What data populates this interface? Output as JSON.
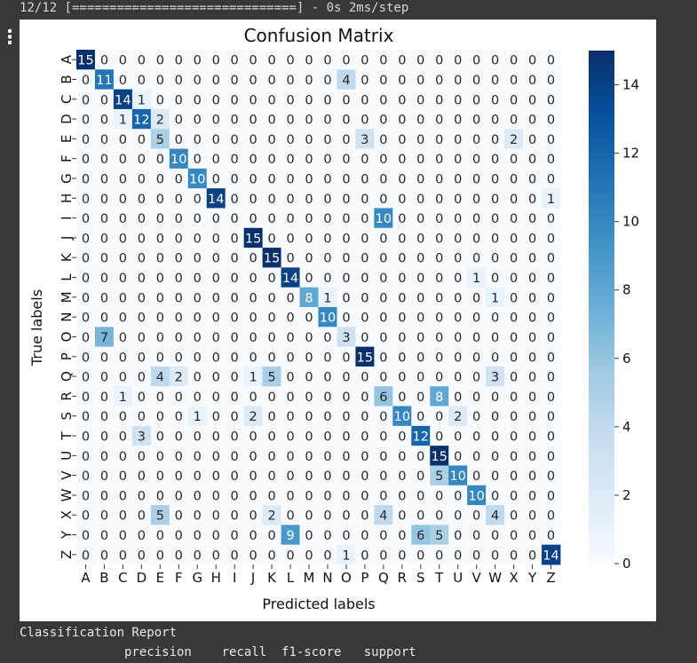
{
  "console": {
    "progress": "12/12 [==============================] - 0s 2ms/step",
    "report_title": "Classification Report",
    "report_header": "              precision    recall  f1-score   support"
  },
  "gutter_icon": "output-toggle-icon",
  "colors": {
    "cmap": "Blues",
    "low": "#f7fbff",
    "high": "#08306b"
  },
  "chart_data": {
    "type": "heatmap",
    "title": "Confusion Matrix",
    "xlabel": "Predicted labels",
    "ylabel": "True labels",
    "x_labels": [
      "A",
      "B",
      "C",
      "D",
      "E",
      "F",
      "G",
      "H",
      "I",
      "J",
      "K",
      "L",
      "M",
      "N",
      "O",
      "P",
      "Q",
      "R",
      "S",
      "T",
      "U",
      "V",
      "W",
      "X",
      "Y",
      "Z"
    ],
    "y_labels": [
      "A",
      "B",
      "C",
      "D",
      "E",
      "F",
      "G",
      "H",
      "I",
      "J",
      "K",
      "L",
      "M",
      "N",
      "O",
      "P",
      "Q",
      "R",
      "S",
      "T",
      "U",
      "V",
      "W",
      "X",
      "Y",
      "Z"
    ],
    "vmin": 0,
    "vmax": 15,
    "colorbar_ticks": [
      0,
      2,
      4,
      6,
      8,
      10,
      12,
      14
    ],
    "matrix": [
      [
        15,
        0,
        0,
        0,
        0,
        0,
        0,
        0,
        0,
        0,
        0,
        0,
        0,
        0,
        0,
        0,
        0,
        0,
        0,
        0,
        0,
        0,
        0,
        0,
        0,
        0
      ],
      [
        0,
        11,
        0,
        0,
        0,
        0,
        0,
        0,
        0,
        0,
        0,
        0,
        0,
        0,
        4,
        0,
        0,
        0,
        0,
        0,
        0,
        0,
        0,
        0,
        0,
        0
      ],
      [
        0,
        0,
        14,
        1,
        0,
        0,
        0,
        0,
        0,
        0,
        0,
        0,
        0,
        0,
        0,
        0,
        0,
        0,
        0,
        0,
        0,
        0,
        0,
        0,
        0,
        0
      ],
      [
        0,
        0,
        1,
        12,
        2,
        0,
        0,
        0,
        0,
        0,
        0,
        0,
        0,
        0,
        0,
        0,
        0,
        0,
        0,
        0,
        0,
        0,
        0,
        0,
        0,
        0
      ],
      [
        0,
        0,
        0,
        0,
        5,
        0,
        0,
        0,
        0,
        0,
        0,
        0,
        0,
        0,
        0,
        3,
        0,
        0,
        0,
        0,
        0,
        0,
        0,
        2,
        0,
        0
      ],
      [
        0,
        0,
        0,
        0,
        0,
        10,
        0,
        0,
        0,
        0,
        0,
        0,
        0,
        0,
        0,
        0,
        0,
        0,
        0,
        0,
        0,
        0,
        0,
        0,
        0,
        0
      ],
      [
        0,
        0,
        0,
        0,
        0,
        0,
        10,
        0,
        0,
        0,
        0,
        0,
        0,
        0,
        0,
        0,
        0,
        0,
        0,
        0,
        0,
        0,
        0,
        0,
        0,
        0
      ],
      [
        0,
        0,
        0,
        0,
        0,
        0,
        0,
        14,
        0,
        0,
        0,
        0,
        0,
        0,
        0,
        0,
        0,
        0,
        0,
        0,
        0,
        0,
        0,
        0,
        0,
        1
      ],
      [
        0,
        0,
        0,
        0,
        0,
        0,
        0,
        0,
        0,
        0,
        0,
        0,
        0,
        0,
        0,
        0,
        10,
        0,
        0,
        0,
        0,
        0,
        0,
        0,
        0,
        0
      ],
      [
        0,
        0,
        0,
        0,
        0,
        0,
        0,
        0,
        0,
        15,
        0,
        0,
        0,
        0,
        0,
        0,
        0,
        0,
        0,
        0,
        0,
        0,
        0,
        0,
        0,
        0
      ],
      [
        0,
        0,
        0,
        0,
        0,
        0,
        0,
        0,
        0,
        0,
        15,
        0,
        0,
        0,
        0,
        0,
        0,
        0,
        0,
        0,
        0,
        0,
        0,
        0,
        0,
        0
      ],
      [
        0,
        0,
        0,
        0,
        0,
        0,
        0,
        0,
        0,
        0,
        0,
        14,
        0,
        0,
        0,
        0,
        0,
        0,
        0,
        0,
        0,
        1,
        0,
        0,
        0,
        0
      ],
      [
        0,
        0,
        0,
        0,
        0,
        0,
        0,
        0,
        0,
        0,
        0,
        0,
        8,
        1,
        0,
        0,
        0,
        0,
        0,
        0,
        0,
        0,
        1,
        0,
        0,
        0
      ],
      [
        0,
        0,
        0,
        0,
        0,
        0,
        0,
        0,
        0,
        0,
        0,
        0,
        0,
        10,
        0,
        0,
        0,
        0,
        0,
        0,
        0,
        0,
        0,
        0,
        0,
        0
      ],
      [
        0,
        7,
        0,
        0,
        0,
        0,
        0,
        0,
        0,
        0,
        0,
        0,
        0,
        0,
        3,
        0,
        0,
        0,
        0,
        0,
        0,
        0,
        0,
        0,
        0,
        0
      ],
      [
        0,
        0,
        0,
        0,
        0,
        0,
        0,
        0,
        0,
        0,
        0,
        0,
        0,
        0,
        0,
        15,
        0,
        0,
        0,
        0,
        0,
        0,
        0,
        0,
        0,
        0
      ],
      [
        0,
        0,
        0,
        0,
        4,
        2,
        0,
        0,
        0,
        1,
        5,
        0,
        0,
        0,
        0,
        0,
        0,
        0,
        0,
        0,
        0,
        0,
        3,
        0,
        0,
        0
      ],
      [
        0,
        0,
        1,
        0,
        0,
        0,
        0,
        0,
        0,
        0,
        0,
        0,
        0,
        0,
        0,
        0,
        6,
        0,
        0,
        8,
        0,
        0,
        0,
        0,
        0,
        0
      ],
      [
        0,
        0,
        0,
        0,
        0,
        0,
        1,
        0,
        0,
        2,
        0,
        0,
        0,
        0,
        0,
        0,
        0,
        10,
        0,
        0,
        2,
        0,
        0,
        0,
        0,
        0
      ],
      [
        0,
        0,
        0,
        3,
        0,
        0,
        0,
        0,
        0,
        0,
        0,
        0,
        0,
        0,
        0,
        0,
        0,
        0,
        12,
        0,
        0,
        0,
        0,
        0,
        0,
        0
      ],
      [
        0,
        0,
        0,
        0,
        0,
        0,
        0,
        0,
        0,
        0,
        0,
        0,
        0,
        0,
        0,
        0,
        0,
        0,
        0,
        15,
        0,
        0,
        0,
        0,
        0,
        0
      ],
      [
        0,
        0,
        0,
        0,
        0,
        0,
        0,
        0,
        0,
        0,
        0,
        0,
        0,
        0,
        0,
        0,
        0,
        0,
        0,
        5,
        10,
        0,
        0,
        0,
        0,
        0
      ],
      [
        0,
        0,
        0,
        0,
        0,
        0,
        0,
        0,
        0,
        0,
        0,
        0,
        0,
        0,
        0,
        0,
        0,
        0,
        0,
        0,
        0,
        10,
        0,
        0,
        0,
        0
      ],
      [
        0,
        0,
        0,
        0,
        5,
        0,
        0,
        0,
        0,
        0,
        2,
        0,
        0,
        0,
        0,
        0,
        4,
        0,
        0,
        0,
        0,
        0,
        4,
        0,
        0,
        0
      ],
      [
        0,
        0,
        0,
        0,
        0,
        0,
        0,
        0,
        0,
        0,
        0,
        9,
        0,
        0,
        0,
        0,
        0,
        0,
        6,
        5,
        0,
        0,
        0,
        0,
        0,
        0
      ],
      [
        0,
        0,
        0,
        0,
        0,
        0,
        0,
        0,
        0,
        0,
        0,
        0,
        0,
        0,
        1,
        0,
        0,
        0,
        0,
        0,
        0,
        0,
        0,
        0,
        0,
        14
      ]
    ]
  }
}
